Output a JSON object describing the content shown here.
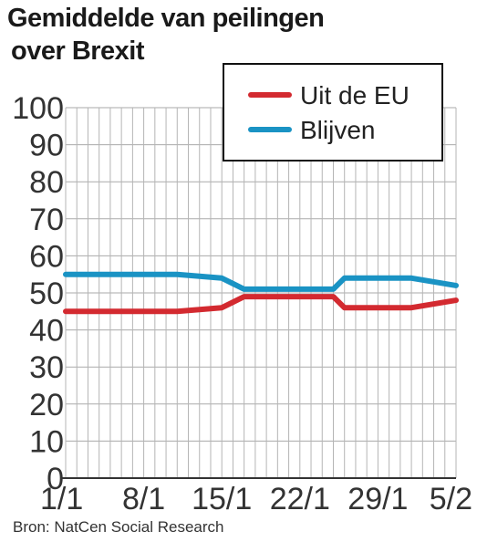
{
  "chart_data": {
    "type": "line",
    "title_line1": "Gemiddelde van peilingen",
    "title_line2": "over Brexit",
    "source": "Bron: NatCen Social Research",
    "x_labels": [
      "1/1",
      "8/1",
      "15/1",
      "22/1",
      "29/1",
      "5/2"
    ],
    "x_range": [
      0,
      35
    ],
    "ylim": [
      0,
      100
    ],
    "y_ticks": [
      0,
      10,
      20,
      30,
      40,
      50,
      60,
      70,
      80,
      90,
      100
    ],
    "grid": true,
    "legend_position": "top-right",
    "series": [
      {
        "name": "Uit de EU",
        "color": "#d32a30",
        "x": [
          0,
          10,
          14,
          16,
          24,
          25,
          31,
          35
        ],
        "y": [
          45,
          45,
          46,
          49,
          49,
          46,
          46,
          48
        ]
      },
      {
        "name": "Blijven",
        "color": "#1a93c4",
        "x": [
          0,
          10,
          14,
          16,
          24,
          25,
          31,
          35
        ],
        "y": [
          55,
          55,
          54,
          51,
          51,
          54,
          54,
          52
        ]
      }
    ]
  }
}
